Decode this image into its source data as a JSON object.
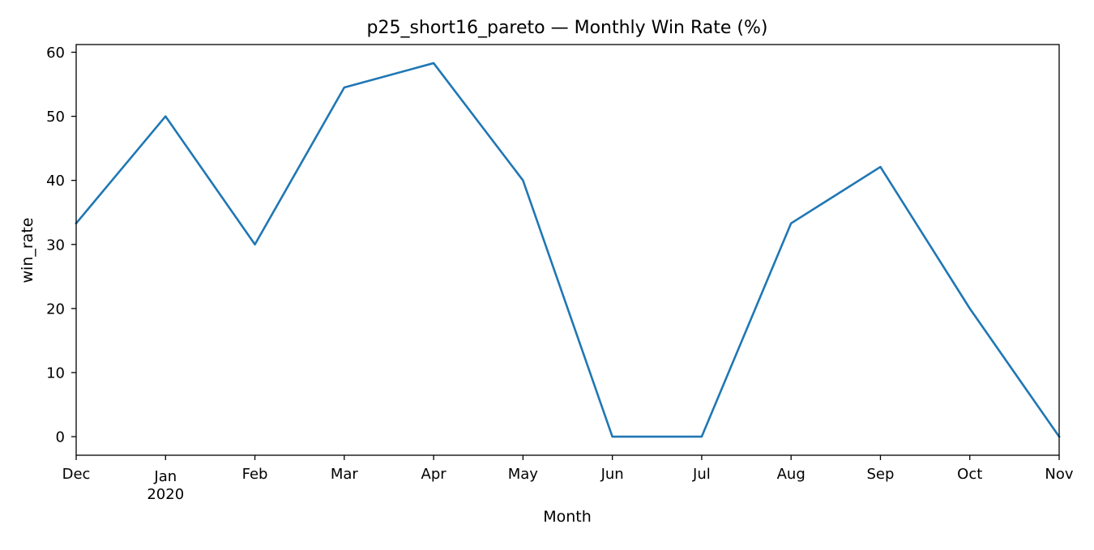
{
  "chart_data": {
    "type": "line",
    "title": "p25_short16_pareto — Monthly Win Rate (%)",
    "xlabel": "Month",
    "ylabel": "win_rate",
    "x": [
      "2019-12",
      "2020-01",
      "2020-02",
      "2020-03",
      "2020-04",
      "2020-05",
      "2020-06",
      "2020-07",
      "2020-08",
      "2020-09",
      "2020-10",
      "2020-11"
    ],
    "x_tick_labels": [
      "Dec",
      "Jan",
      "Feb",
      "Mar",
      "Apr",
      "May",
      "Jun",
      "Jul",
      "Aug",
      "Sep",
      "Oct",
      "Nov"
    ],
    "x_tick_sublabels": [
      "",
      "2020",
      "",
      "",
      "",
      "",
      "",
      "",
      "",
      "",
      "",
      ""
    ],
    "y_ticks": [
      0,
      10,
      20,
      30,
      40,
      50,
      60
    ],
    "ylim": [
      -2.9,
      61.2
    ],
    "series": [
      {
        "values": [
          33.3,
          50.0,
          30.0,
          54.5,
          58.3,
          40.0,
          0.0,
          0.0,
          33.3,
          42.1,
          20.0,
          0.0
        ],
        "color": "#1f77b4"
      }
    ],
    "grid": false,
    "legend": "none"
  }
}
